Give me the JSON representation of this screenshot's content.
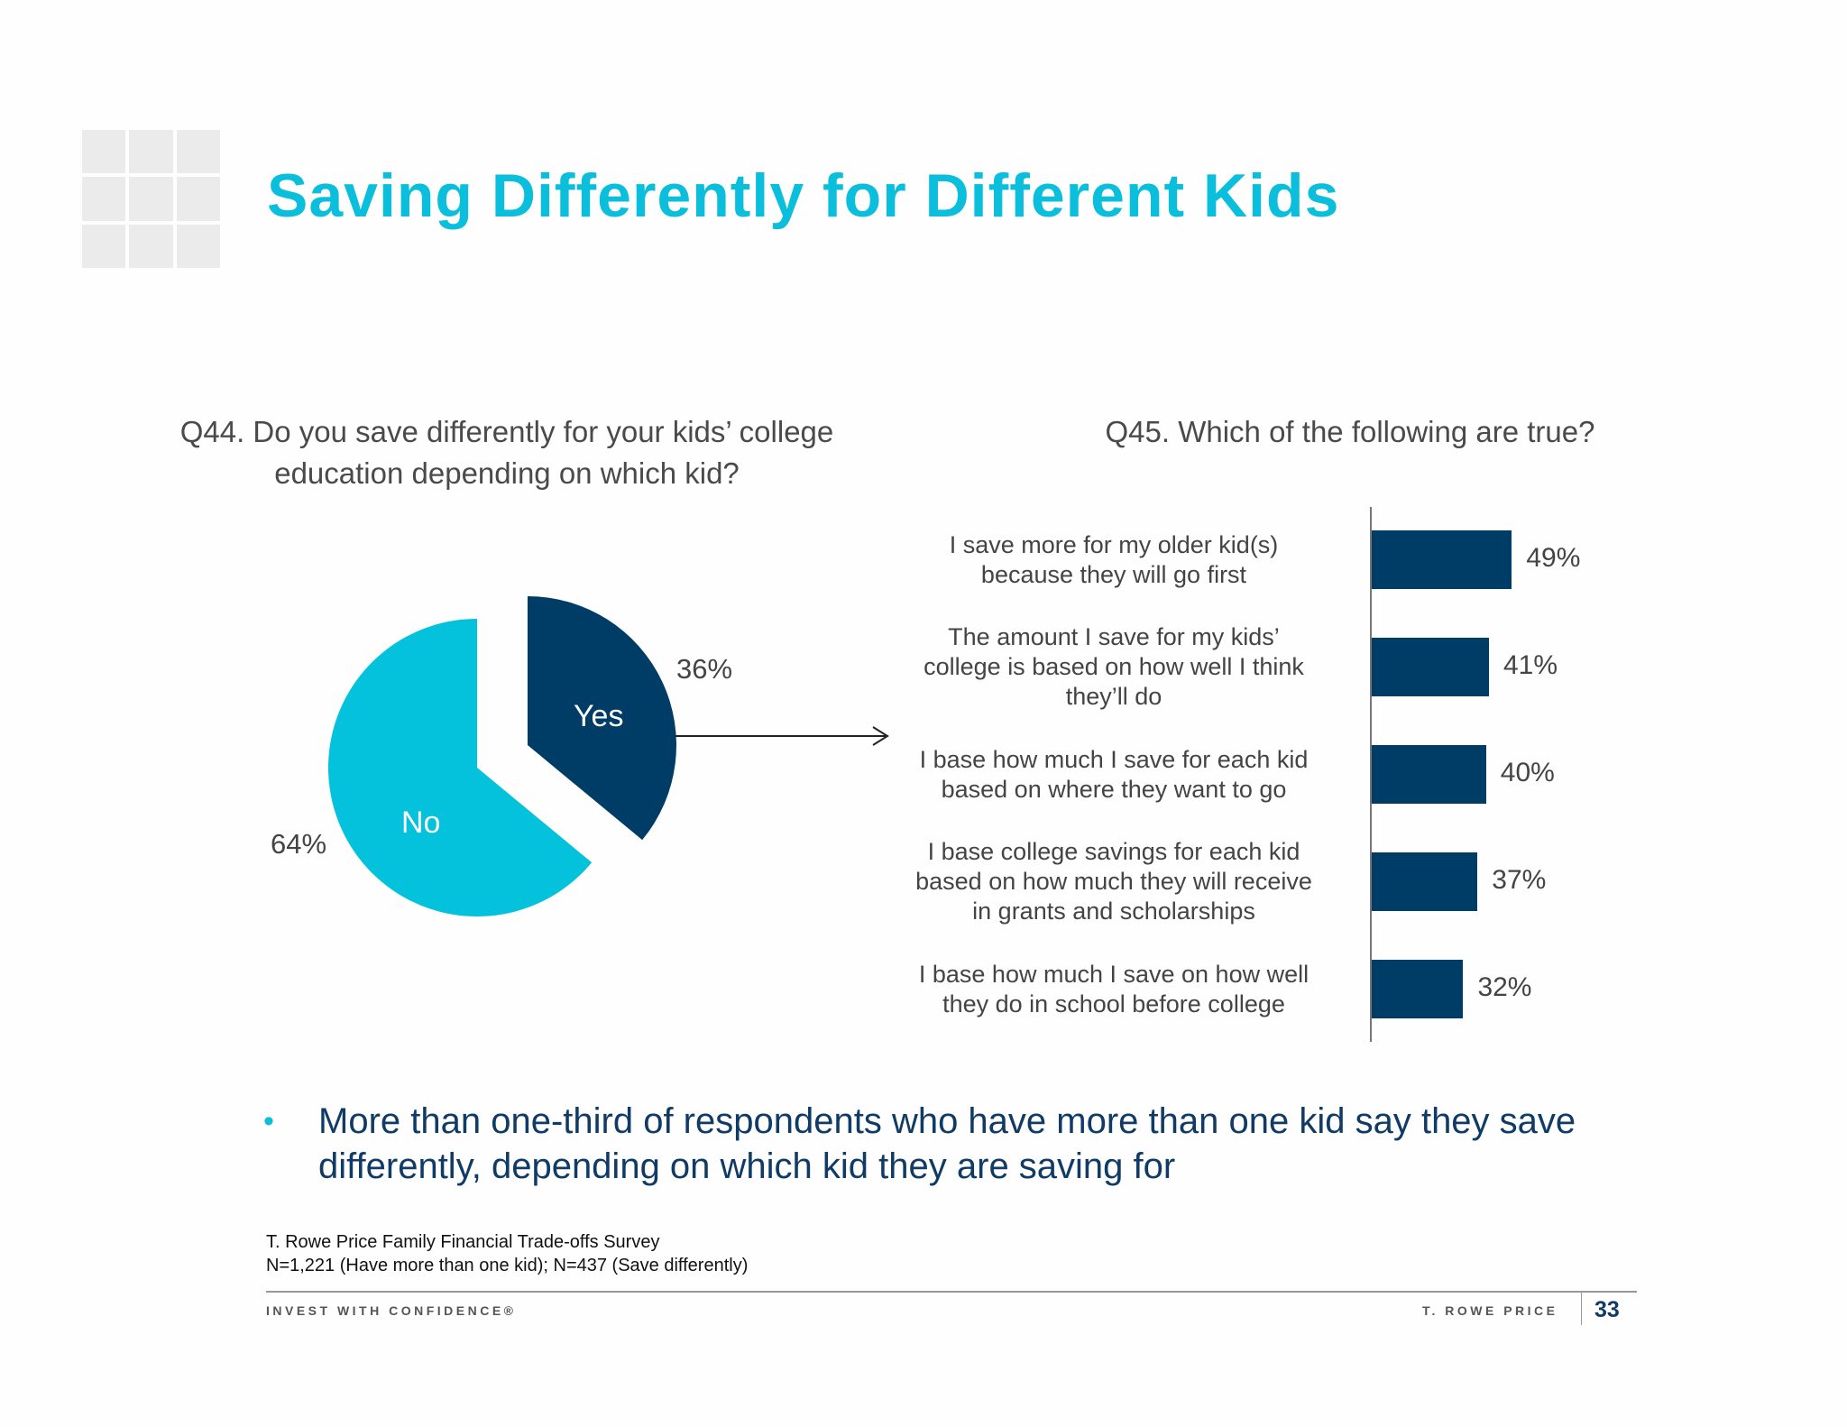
{
  "title": "Saving Differently for Different Kids",
  "chart_data": [
    {
      "type": "pie",
      "title": "Q44. Do you save differently for your kids’ college education depending on which kid?",
      "slices": [
        {
          "name": "Yes",
          "value": 36,
          "label": "36%",
          "color": "#003d66"
        },
        {
          "name": "No",
          "value": 64,
          "label": "64%",
          "color": "#04c1dc"
        }
      ]
    },
    {
      "type": "bar",
      "orientation": "horizontal",
      "title": "Q45. Which of the following are true?",
      "categories": [
        [
          "I save more for my older kid(s)",
          "because they will go first"
        ],
        [
          "The amount I save for my kids’",
          "college is based on how well I think",
          "they’ll do"
        ],
        [
          "I base how much I save for each kid",
          "based on where they want to go"
        ],
        [
          "I base college savings for each kid",
          "based on how much they will receive",
          "in grants and scholarships"
        ],
        [
          "I base how much I save on how well",
          "they do in school before college"
        ]
      ],
      "values": [
        49,
        41,
        40,
        37,
        32
      ],
      "value_labels": [
        "49%",
        "41%",
        "40%",
        "37%",
        "32%"
      ],
      "color": "#003d66",
      "grid": false
    }
  ],
  "bullet": "More than one-third of respondents who have more than one kid say they save differently, depending on which kid they are saving for",
  "source": {
    "line1": "T. Rowe Price Family Financial Trade-offs Survey",
    "line2": "N=1,221 (Have more than one kid); N=437 (Save differently)"
  },
  "footer": {
    "tagline": "INVEST WITH CONFIDENCE®",
    "brand": "T. ROWE PRICE",
    "page_number": "33"
  }
}
